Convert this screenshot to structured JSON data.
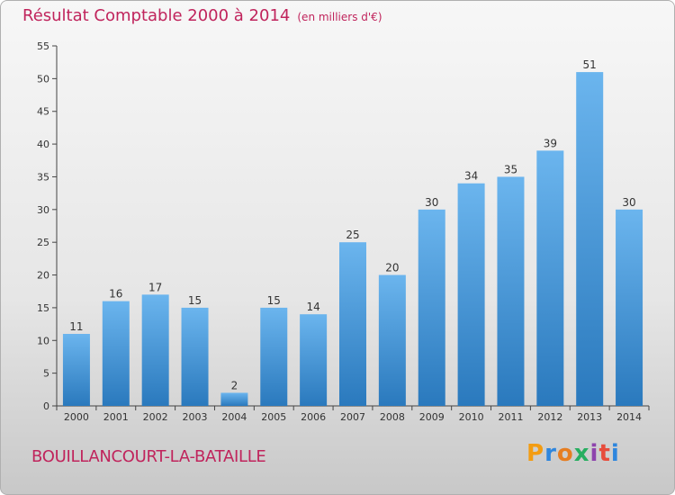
{
  "title": "Résultat Comptable 2000 à 2014",
  "unit": "(en milliers d'€)",
  "commune": "BOUILLANCOURT-LA-BATAILLE",
  "logo": {
    "letters": [
      "P",
      "r",
      "o",
      "x",
      "i",
      "t",
      "i"
    ],
    "colors": [
      "#f39c12",
      "#2e86de",
      "#e67e22",
      "#27ae60",
      "#8e44ad",
      "#e74c3c",
      "#2e86de"
    ]
  },
  "colors": {
    "accent": "#c0245c",
    "bar_light": "#6bb5ee",
    "bar_dark": "#2e7fc1"
  },
  "chart_data": {
    "type": "bar",
    "categories": [
      "2000",
      "2001",
      "2002",
      "2003",
      "2004",
      "2005",
      "2006",
      "2007",
      "2008",
      "2009",
      "2010",
      "2011",
      "2012",
      "2013",
      "2014"
    ],
    "values": [
      11,
      16,
      17,
      15,
      2,
      15,
      14,
      25,
      20,
      30,
      34,
      35,
      39,
      51,
      30
    ],
    "ylim": [
      0,
      55
    ],
    "yticks": [
      0,
      5,
      10,
      15,
      20,
      25,
      30,
      35,
      40,
      45,
      50,
      55
    ],
    "grid": false,
    "legend": "none"
  }
}
